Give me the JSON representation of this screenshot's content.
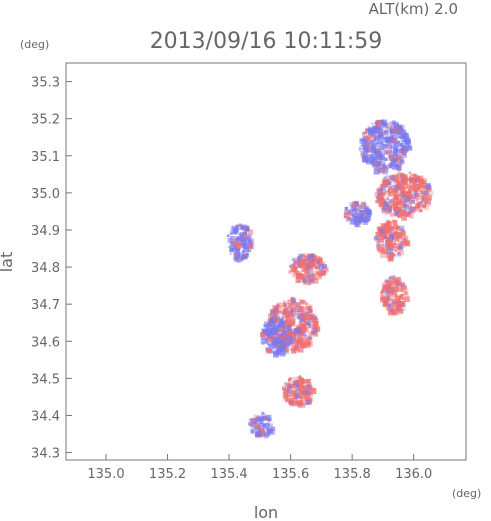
{
  "chart_data": {
    "type": "heatmap",
    "title": "2013/09/16 10:11:59",
    "altitude_label": "ALT(km)  2.0",
    "xlabel": "lon",
    "ylabel": "lat",
    "x_unit": "(deg)",
    "y_unit": "(deg)",
    "xlim": [
      134.87,
      136.17
    ],
    "ylim": [
      34.28,
      35.35
    ],
    "x_ticks": [
      "135.0",
      "135.2",
      "135.4",
      "135.6",
      "135.8",
      "136.0"
    ],
    "y_ticks": [
      "34.3",
      "34.4",
      "34.5",
      "34.6",
      "34.7",
      "34.8",
      "34.9",
      "35.0",
      "35.1",
      "35.2",
      "35.3"
    ],
    "grid": false,
    "colors": {
      "positive": "#f08080",
      "negative": "#8080f0",
      "axis": "#777777"
    },
    "echo_regions": [
      {
        "lon": 135.9,
        "lat": 35.13,
        "r_lon": 0.08,
        "r_lat": 0.07,
        "sign": -1
      },
      {
        "lon": 135.96,
        "lat": 35.0,
        "r_lon": 0.09,
        "r_lat": 0.06,
        "sign": 1
      },
      {
        "lon": 135.92,
        "lat": 34.88,
        "r_lon": 0.05,
        "r_lat": 0.05,
        "sign": 1
      },
      {
        "lon": 135.93,
        "lat": 34.73,
        "r_lon": 0.04,
        "r_lat": 0.05,
        "sign": 1
      },
      {
        "lon": 135.81,
        "lat": 34.95,
        "r_lon": 0.04,
        "r_lat": 0.03,
        "sign": -1
      },
      {
        "lon": 135.65,
        "lat": 34.8,
        "r_lon": 0.06,
        "r_lat": 0.04,
        "sign": 1
      },
      {
        "lon": 135.43,
        "lat": 34.87,
        "r_lon": 0.04,
        "r_lat": 0.05,
        "sign": -1
      },
      {
        "lon": 135.6,
        "lat": 34.65,
        "r_lon": 0.08,
        "r_lat": 0.07,
        "sign": 1
      },
      {
        "lon": 135.55,
        "lat": 34.62,
        "r_lon": 0.05,
        "r_lat": 0.05,
        "sign": -1
      },
      {
        "lon": 135.62,
        "lat": 34.47,
        "r_lon": 0.05,
        "r_lat": 0.04,
        "sign": 1
      },
      {
        "lon": 135.5,
        "lat": 34.38,
        "r_lon": 0.04,
        "r_lat": 0.03,
        "sign": -1
      }
    ]
  }
}
